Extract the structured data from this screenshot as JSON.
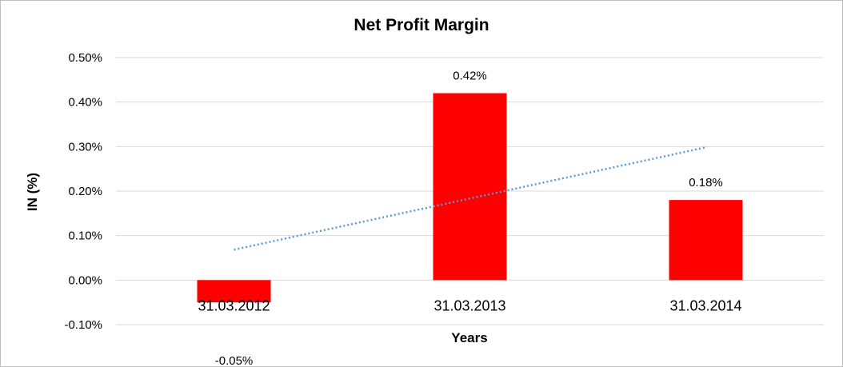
{
  "chart_data": {
    "type": "bar",
    "title": "Net Profit Margin",
    "xlabel": "Years",
    "ylabel": "IN (%)",
    "categories": [
      "31.03.2012",
      "31.03.2013",
      "31.03.2014"
    ],
    "values": [
      -0.05,
      0.42,
      0.18
    ],
    "data_labels": [
      "-0.05%",
      "0.42%",
      "0.18%"
    ],
    "ylim": [
      -0.1,
      0.5
    ],
    "yticks": [
      -0.1,
      0,
      0.1,
      0.2,
      0.3,
      0.4,
      0.5
    ],
    "ytick_labels": [
      "-0.10%",
      "0.00%",
      "0.10%",
      "0.20%",
      "0.30%",
      "0.40%",
      "0.50%"
    ],
    "grid": true,
    "legend": "none",
    "trendline": {
      "type": "linear",
      "style": "dotted",
      "color": "#5b9bd5"
    },
    "bar_color": "#ff0000"
  }
}
